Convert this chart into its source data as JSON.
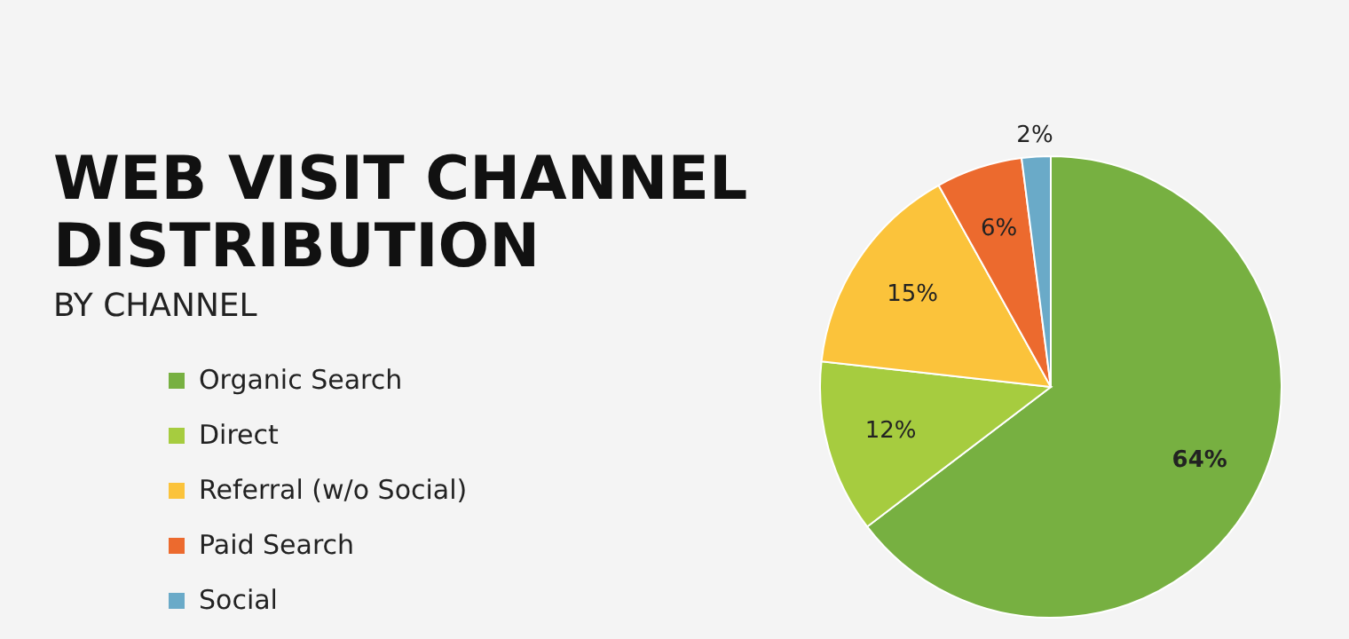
{
  "chart_data": {
    "type": "pie",
    "title": "WEB VISIT CHANNEL DISTRIBUTION",
    "subtitle": "BY CHANNEL",
    "categories": [
      "Organic Search",
      "Direct",
      "Referral (w/o Social)",
      "Paid Search",
      "Social"
    ],
    "values": [
      64,
      12,
      15,
      6,
      2
    ],
    "colors": [
      "#77b041",
      "#a6cc3f",
      "#fbc33b",
      "#ec6a2e",
      "#6aaac8"
    ],
    "value_labels": [
      "64%",
      "12%",
      "15%",
      "6%",
      "2%"
    ],
    "legend": "left"
  }
}
